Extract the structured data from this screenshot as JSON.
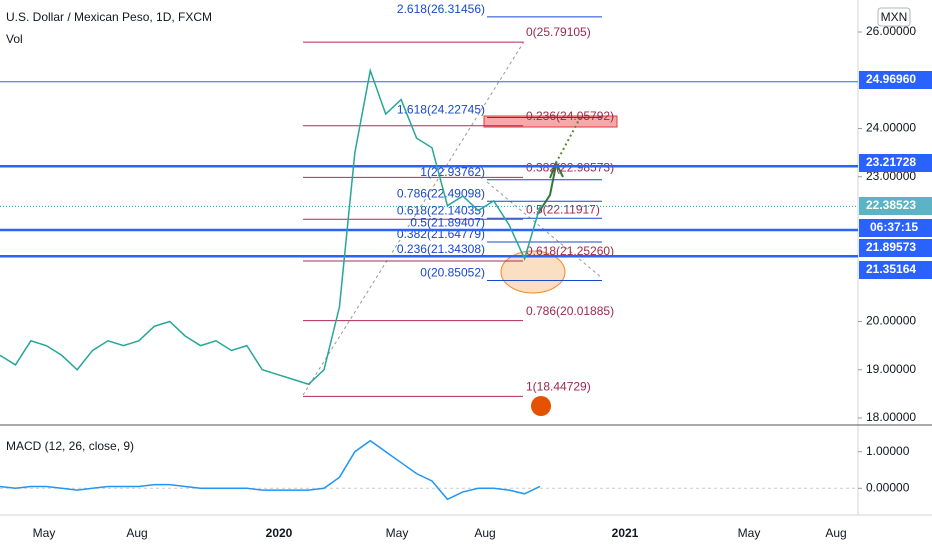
{
  "header": {
    "title": "U.S. Dollar / Mexican Peso, 1D, FXCM",
    "vol": "Vol",
    "currency": "MXN"
  },
  "price": {
    "type": "line",
    "ylim": [
      17.855,
      26.663
    ],
    "yticks": [
      {
        "value": 26,
        "label": "26.00000"
      },
      {
        "value": 24,
        "label": "24.00000"
      },
      {
        "value": 23,
        "label": "23.00000"
      },
      {
        "value": 20,
        "label": "20.00000"
      },
      {
        "value": 19,
        "label": "19.00000"
      },
      {
        "value": 18,
        "label": "18.00000"
      }
    ],
    "values": [
      19.3,
      19.1,
      19.6,
      19.5,
      19.3,
      19.0,
      19.4,
      19.6,
      19.5,
      19.6,
      19.9,
      20.0,
      19.7,
      19.5,
      19.6,
      19.4,
      19.5,
      19.0,
      18.9,
      18.8,
      18.7,
      19.0,
      20.3,
      23.5,
      25.2,
      24.3,
      24.6,
      23.8,
      23.6,
      22.4,
      22.6,
      22.3,
      22.5,
      22.0,
      21.3,
      22.38
    ],
    "color": "#26a69a",
    "levels": [
      {
        "value": 24.9696,
        "label": "24.96960"
      },
      {
        "value": 23.21728,
        "label": "23.21728"
      },
      {
        "value": 22.38523,
        "label": "22.38523"
      },
      {
        "value": 21.89573,
        "label": "21.89573"
      },
      {
        "value": 21.35164,
        "label": "21.35164"
      }
    ],
    "countdown": "06:37:15",
    "fib_a": [
      {
        "value": 25.79105,
        "label": "0(25.79105)"
      },
      {
        "value": 24.05792,
        "label": "0.236(24.05792)"
      },
      {
        "value": 22.98573,
        "label": "0.382(22.98573)"
      },
      {
        "value": 22.11917,
        "label": "0.5(22.11917)"
      },
      {
        "value": 21.2526,
        "label": "0.618(21.25260)"
      },
      {
        "value": 20.01885,
        "label": "0.786(20.01885)"
      },
      {
        "value": 18.44729,
        "label": "1(18.44729)"
      }
    ],
    "fib_b": [
      {
        "value": 26.31456,
        "label": "2.618(26.31456)"
      },
      {
        "value": 24.22745,
        "label": "1.618(24.22745)"
      },
      {
        "value": 22.93762,
        "label": "1(22.93762)"
      },
      {
        "value": 22.49098,
        "label": "0.786(22.49098)"
      },
      {
        "value": 22.14035,
        "label": "0.618(22.14035)"
      },
      {
        "value": 21.89407,
        "label": "0.5(21.89407)"
      },
      {
        "value": 21.64779,
        "label": "0.382(21.64779)"
      },
      {
        "value": 21.34308,
        "label": "0.236(21.34308)"
      },
      {
        "value": 20.85052,
        "label": "0(20.85052)"
      }
    ]
  },
  "macd": {
    "type": "line",
    "title": "MACD (12, 26, close, 9)",
    "ylim": [
      -0.73,
      1.73
    ],
    "yticks": [
      {
        "value": 1,
        "label": "1.00000"
      },
      {
        "value": 0,
        "label": "0.00000"
      }
    ],
    "values": [
      0.05,
      0.0,
      0.05,
      0.05,
      0.0,
      -0.05,
      0.0,
      0.05,
      0.05,
      0.05,
      0.1,
      0.1,
      0.05,
      0.0,
      0.0,
      0.0,
      0.0,
      -0.05,
      -0.05,
      -0.05,
      -0.05,
      0.0,
      0.3,
      1.0,
      1.3,
      1.0,
      0.7,
      0.4,
      0.2,
      -0.3,
      -0.1,
      0.0,
      0.0,
      -0.05,
      -0.15,
      0.05
    ],
    "color": "#2196f3"
  },
  "time_axis": [
    "May",
    "Aug",
    "2020",
    "May",
    "Aug",
    "2021",
    "May",
    "Aug"
  ]
}
